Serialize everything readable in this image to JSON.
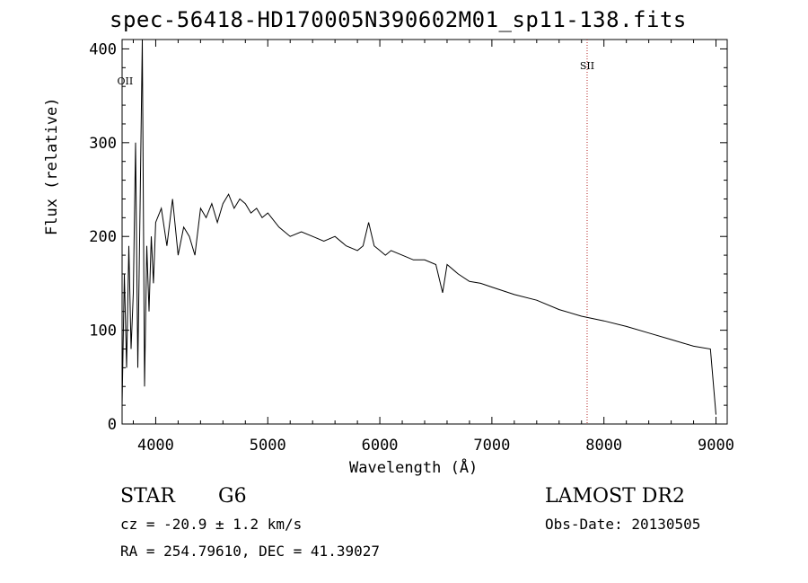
{
  "chart_data": {
    "type": "line",
    "title": "spec-56418-HD170005N390602M01_sp11-138.fits",
    "xlabel": "Wavelength (Å)",
    "ylabel": "Flux (relative)",
    "xlim": [
      3700,
      9100
    ],
    "ylim": [
      0,
      410
    ],
    "x_ticks": [
      4000,
      5000,
      6000,
      7000,
      8000,
      9000
    ],
    "y_ticks": [
      0,
      100,
      200,
      300,
      400
    ],
    "grid": false,
    "series": [
      {
        "x": [
          3700,
          3720,
          3740,
          3760,
          3780,
          3800,
          3820,
          3840,
          3860,
          3880,
          3900,
          3920,
          3940,
          3960,
          3980,
          4000,
          4050,
          4100,
          4150,
          4200,
          4250,
          4300,
          4350,
          4400,
          4450,
          4500,
          4550,
          4600,
          4650,
          4700,
          4750,
          4800,
          4850,
          4900,
          4950,
          5000,
          5100,
          5200,
          5300,
          5400,
          5500,
          5600,
          5700,
          5800,
          5850,
          5900,
          5950,
          6000,
          6050,
          6100,
          6200,
          6300,
          6400,
          6500,
          6560,
          6600,
          6700,
          6800,
          6900,
          7000,
          7200,
          7400,
          7600,
          7800,
          8000,
          8200,
          8400,
          8600,
          8800,
          8950,
          9000
        ],
        "y": [
          20,
          160,
          60,
          190,
          80,
          140,
          300,
          60,
          230,
          410,
          40,
          190,
          120,
          200,
          150,
          215,
          230,
          190,
          240,
          180,
          210,
          200,
          180,
          230,
          220,
          235,
          215,
          235,
          245,
          230,
          240,
          235,
          225,
          230,
          220,
          225,
          210,
          200,
          205,
          200,
          195,
          200,
          190,
          185,
          190,
          215,
          190,
          185,
          180,
          185,
          180,
          175,
          175,
          170,
          140,
          170,
          160,
          152,
          150,
          146,
          138,
          132,
          122,
          115,
          110,
          104,
          97,
          90,
          83,
          80,
          10
        ]
      }
    ],
    "annotations": [
      {
        "label": "OII",
        "x": 3727
      },
      {
        "label": "SII",
        "x": 7850
      }
    ]
  },
  "info": {
    "object_type": "STAR",
    "subclass": "G6",
    "survey": "LAMOST DR2",
    "redshift": "cz = -20.9 ± 1.2 km/s",
    "obs_date": "Obs-Date: 20130505",
    "coordinates": "RA = 254.79610, DEC =  41.39027"
  }
}
